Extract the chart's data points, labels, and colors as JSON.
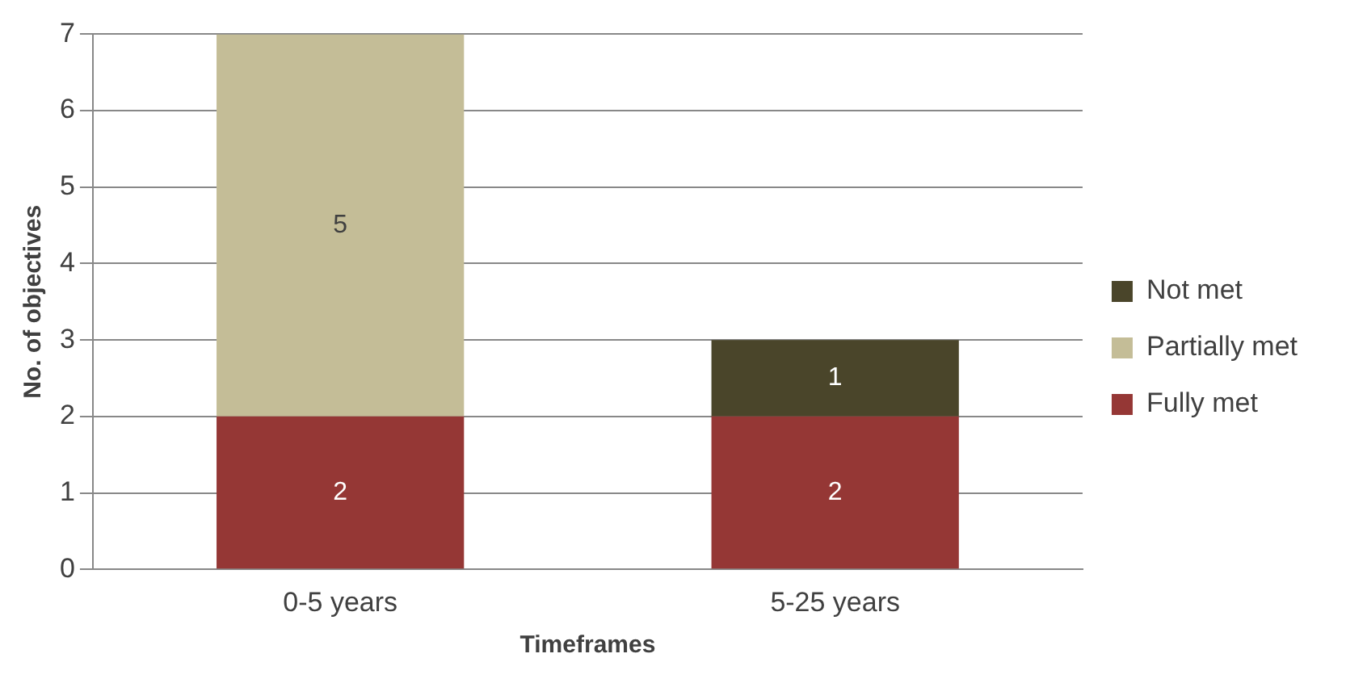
{
  "chart_data": {
    "type": "bar",
    "stacked": true,
    "xlabel": "Timeframes",
    "ylabel": "No. of objectives",
    "categories": [
      "0-5 years",
      "5-25 years"
    ],
    "series": [
      {
        "name": "Fully met",
        "color": "#953735",
        "values": [
          2,
          2
        ],
        "value_labels": [
          "2",
          "2"
        ]
      },
      {
        "name": "Partially met",
        "color": "#c4bd97",
        "values": [
          5,
          null
        ],
        "value_labels": [
          "5",
          null
        ]
      },
      {
        "name": "Not met",
        "color": "#4a452a",
        "values": [
          null,
          1
        ],
        "value_labels": [
          null,
          "1"
        ]
      }
    ],
    "ylim": [
      0,
      7
    ],
    "yticks": [
      0,
      1,
      2,
      3,
      4,
      5,
      6,
      7
    ],
    "grid": "y",
    "legend": "right"
  }
}
